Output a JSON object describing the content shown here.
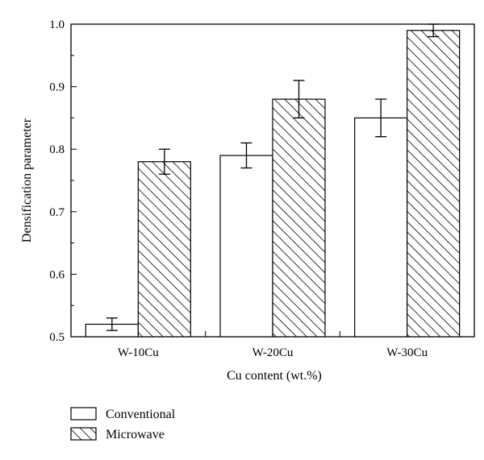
{
  "chart_data": {
    "type": "bar",
    "categories": [
      "W-10Cu",
      "W-20Cu",
      "W-30Cu"
    ],
    "series": [
      {
        "name": "Conventional",
        "values": [
          0.52,
          0.79,
          0.85
        ],
        "errors": [
          0.01,
          0.02,
          0.03
        ],
        "fill": "plain"
      },
      {
        "name": "Microwave",
        "values": [
          0.78,
          0.88,
          0.99
        ],
        "errors": [
          0.02,
          0.03,
          0.01
        ],
        "fill": "hatched"
      }
    ],
    "xlabel": "Cu content (wt.%)",
    "ylabel": "Densification parameter",
    "ylim": [
      0.5,
      1.0
    ],
    "yticks": [
      "0.5",
      "0.6",
      "0.7",
      "0.8",
      "0.9",
      "1.0"
    ],
    "grid": false,
    "legend_position": "bottom-left"
  },
  "colors": {
    "bar_fill": "#ffffff",
    "stroke": "#000000"
  }
}
